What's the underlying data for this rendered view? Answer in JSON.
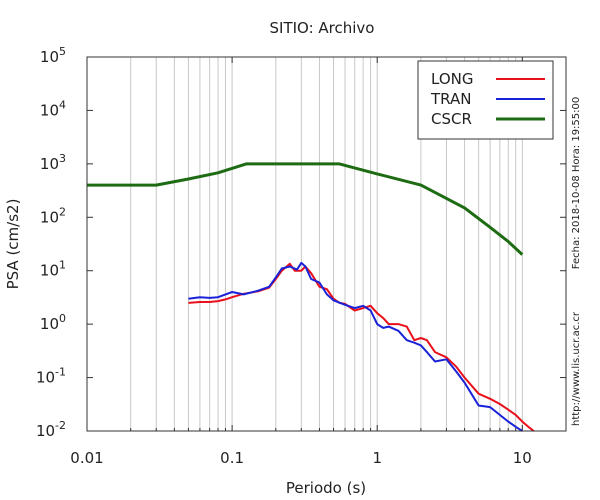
{
  "chart_data": {
    "type": "line",
    "title": "SITIO: Archivo",
    "xlabel": "Periodo (s)",
    "ylabel": "PSA (cm/s2)",
    "x_scale": "log",
    "y_scale": "log",
    "xlim": [
      0.01,
      20
    ],
    "ylim": [
      0.01,
      100000
    ],
    "grid": "x-log-minor-vertical",
    "legend_position": "top-right",
    "x_ticks": [
      {
        "value": 0.01,
        "label": "0.01"
      },
      {
        "value": 0.1,
        "label": "0.1"
      },
      {
        "value": 1,
        "label": "1"
      },
      {
        "value": 10,
        "label": "10"
      }
    ],
    "y_ticks": [
      {
        "value": 0.01,
        "base": "10",
        "exp": "-2"
      },
      {
        "value": 0.1,
        "base": "10",
        "exp": "-1"
      },
      {
        "value": 1,
        "base": "10",
        "exp": "0"
      },
      {
        "value": 10,
        "base": "10",
        "exp": "1"
      },
      {
        "value": 100,
        "base": "10",
        "exp": "2"
      },
      {
        "value": 1000,
        "base": "10",
        "exp": "3"
      },
      {
        "value": 10000,
        "base": "10",
        "exp": "4"
      },
      {
        "value": 100000,
        "base": "10",
        "exp": "5"
      }
    ],
    "series": [
      {
        "name": "LONG",
        "color": "#e8101a",
        "width": 2,
        "points": [
          [
            0.05,
            2.5
          ],
          [
            0.06,
            2.6
          ],
          [
            0.07,
            2.6
          ],
          [
            0.08,
            2.7
          ],
          [
            0.09,
            2.9
          ],
          [
            0.1,
            3.2
          ],
          [
            0.12,
            3.7
          ],
          [
            0.15,
            4.1
          ],
          [
            0.18,
            4.8
          ],
          [
            0.2,
            7.0
          ],
          [
            0.22,
            10.0
          ],
          [
            0.25,
            13.5
          ],
          [
            0.27,
            10.0
          ],
          [
            0.3,
            10.0
          ],
          [
            0.32,
            12.0
          ],
          [
            0.35,
            9.0
          ],
          [
            0.4,
            5.0
          ],
          [
            0.45,
            4.5
          ],
          [
            0.5,
            3.0
          ],
          [
            0.55,
            2.5
          ],
          [
            0.6,
            2.4
          ],
          [
            0.7,
            1.8
          ],
          [
            0.8,
            2.0
          ],
          [
            0.9,
            2.2
          ],
          [
            1.0,
            1.6
          ],
          [
            1.1,
            1.3
          ],
          [
            1.2,
            1.0
          ],
          [
            1.4,
            1.0
          ],
          [
            1.6,
            0.9
          ],
          [
            1.8,
            0.5
          ],
          [
            2.0,
            0.55
          ],
          [
            2.2,
            0.5
          ],
          [
            2.5,
            0.3
          ],
          [
            3.0,
            0.24
          ],
          [
            3.5,
            0.16
          ],
          [
            4.0,
            0.1
          ],
          [
            5.0,
            0.05
          ],
          [
            6.0,
            0.04
          ],
          [
            7.0,
            0.032
          ],
          [
            8.0,
            0.025
          ],
          [
            9.0,
            0.02
          ],
          [
            10.0,
            0.015
          ],
          [
            11.0,
            0.012
          ],
          [
            12.0,
            0.01
          ]
        ]
      },
      {
        "name": "TRAN",
        "color": "#1a22d8",
        "width": 2,
        "points": [
          [
            0.05,
            3.0
          ],
          [
            0.06,
            3.2
          ],
          [
            0.07,
            3.1
          ],
          [
            0.08,
            3.2
          ],
          [
            0.09,
            3.6
          ],
          [
            0.1,
            4.0
          ],
          [
            0.12,
            3.6
          ],
          [
            0.15,
            4.2
          ],
          [
            0.18,
            5.0
          ],
          [
            0.2,
            7.5
          ],
          [
            0.22,
            11.0
          ],
          [
            0.25,
            12.0
          ],
          [
            0.28,
            10.5
          ],
          [
            0.3,
            14.0
          ],
          [
            0.32,
            12.0
          ],
          [
            0.35,
            7.0
          ],
          [
            0.4,
            6.0
          ],
          [
            0.45,
            3.6
          ],
          [
            0.5,
            2.8
          ],
          [
            0.6,
            2.3
          ],
          [
            0.7,
            2.0
          ],
          [
            0.8,
            2.2
          ],
          [
            0.9,
            1.8
          ],
          [
            1.0,
            1.0
          ],
          [
            1.1,
            0.85
          ],
          [
            1.2,
            0.9
          ],
          [
            1.4,
            0.75
          ],
          [
            1.6,
            0.5
          ],
          [
            1.8,
            0.45
          ],
          [
            2.0,
            0.4
          ],
          [
            2.2,
            0.3
          ],
          [
            2.5,
            0.2
          ],
          [
            3.0,
            0.22
          ],
          [
            3.5,
            0.13
          ],
          [
            4.0,
            0.08
          ],
          [
            5.0,
            0.03
          ],
          [
            6.0,
            0.028
          ],
          [
            7.0,
            0.02
          ],
          [
            8.0,
            0.015
          ],
          [
            9.0,
            0.012
          ],
          [
            10.0,
            0.01
          ]
        ]
      },
      {
        "name": "CSCR",
        "color": "#1d6b12",
        "width": 3,
        "points": [
          [
            0.01,
            400
          ],
          [
            0.03,
            400
          ],
          [
            0.05,
            520
          ],
          [
            0.08,
            680
          ],
          [
            0.125,
            1000
          ],
          [
            0.55,
            1000
          ],
          [
            1.0,
            650
          ],
          [
            2.0,
            400
          ],
          [
            4.0,
            150
          ],
          [
            6.0,
            65
          ],
          [
            8.0,
            35
          ],
          [
            10.0,
            20
          ]
        ]
      }
    ],
    "side_text": {
      "timestamp": "Fecha: 2018-10-08 Hora: 19:55:00",
      "website": "http://www.lis.ucr.ac.cr"
    }
  }
}
